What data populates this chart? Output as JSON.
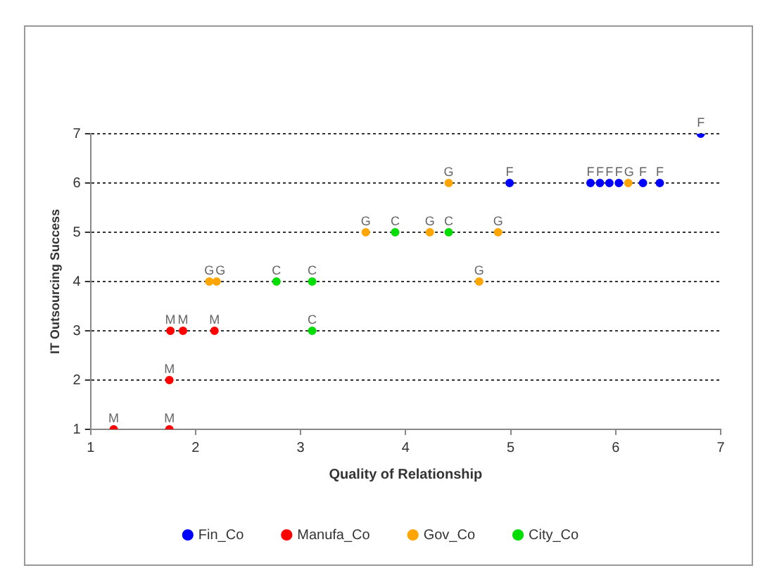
{
  "chart_data": {
    "type": "scatter",
    "xlabel": "Quality of Relationship",
    "ylabel": "IT Outsourcing Success",
    "xlim": [
      1,
      7
    ],
    "xticks": [
      1,
      2,
      3,
      4,
      5,
      6,
      7
    ],
    "ylim": [
      1,
      7
    ],
    "yticks": [
      1,
      2,
      3,
      4,
      5,
      6,
      7
    ],
    "grid": "y",
    "legend": "bottom",
    "marker": "circle",
    "series": [
      {
        "name": "Fin_Co",
        "color": "#0000ff",
        "x": [
          4.99,
          5.76,
          5.85,
          5.94,
          6.03,
          6.26,
          6.42,
          6.81
        ],
        "values": [
          6,
          6,
          6,
          6,
          6,
          6,
          6,
          7
        ]
      },
      {
        "name": "Manufa_Co",
        "color": "#ff0000",
        "x": [
          1.22,
          1.75,
          1.75,
          1.76,
          1.88,
          2.18
        ],
        "values": [
          1,
          1,
          2,
          3,
          3,
          3
        ]
      },
      {
        "name": "Gov_Co",
        "color": "#ffa500",
        "x": [
          2.13,
          2.2,
          3.62,
          4.23,
          4.41,
          4.7,
          4.88,
          6.12
        ],
        "values": [
          4,
          4,
          5,
          5,
          6,
          4,
          5,
          6
        ]
      },
      {
        "name": "City_Co",
        "color": "#00dd00",
        "x": [
          2.77,
          3.11,
          3.11,
          3.9,
          4.41
        ],
        "values": [
          4,
          4,
          3,
          5,
          5
        ]
      }
    ],
    "annotations": [
      {
        "text": "F",
        "x": 4.99,
        "y": 6
      },
      {
        "text": "F",
        "x": 5.76,
        "y": 6
      },
      {
        "text": "F",
        "x": 5.85,
        "y": 6
      },
      {
        "text": "F",
        "x": 5.94,
        "y": 6
      },
      {
        "text": "F",
        "x": 6.03,
        "y": 6
      },
      {
        "text": "F",
        "x": 6.26,
        "y": 6
      },
      {
        "text": "F",
        "x": 6.42,
        "y": 6
      },
      {
        "text": "F",
        "x": 6.81,
        "y": 7
      },
      {
        "text": "M",
        "x": 1.22,
        "y": 1
      },
      {
        "text": "M",
        "x": 1.75,
        "y": 1
      },
      {
        "text": "M",
        "x": 1.75,
        "y": 2
      },
      {
        "text": "M",
        "x": 1.76,
        "y": 3
      },
      {
        "text": "M",
        "x": 1.88,
        "y": 3
      },
      {
        "text": "M",
        "x": 2.18,
        "y": 3
      },
      {
        "text": "G",
        "x": 2.13,
        "y": 4
      },
      {
        "text": "G",
        "x": 2.2,
        "y": 4
      },
      {
        "text": "G",
        "x": 3.62,
        "y": 5
      },
      {
        "text": "G",
        "x": 4.23,
        "y": 5
      },
      {
        "text": "G",
        "x": 4.41,
        "y": 6
      },
      {
        "text": "G",
        "x": 4.7,
        "y": 4
      },
      {
        "text": "G",
        "x": 4.88,
        "y": 5
      },
      {
        "text": "G",
        "x": 6.12,
        "y": 6
      },
      {
        "text": "C",
        "x": 2.77,
        "y": 4
      },
      {
        "text": "C",
        "x": 3.11,
        "y": 4
      },
      {
        "text": "C",
        "x": 3.11,
        "y": 3
      },
      {
        "text": "C",
        "x": 3.9,
        "y": 5
      },
      {
        "text": "C",
        "x": 4.41,
        "y": 5
      }
    ]
  }
}
